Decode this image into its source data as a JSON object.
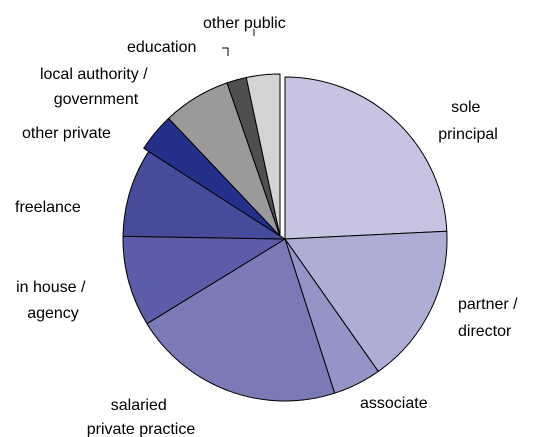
{
  "chart_data": {
    "type": "pie",
    "title": "",
    "start_angle": "12 o'clock, clockwise",
    "slices": [
      {
        "label": "sole principal",
        "value": 24.7,
        "color": "#c6c4e0",
        "lines": [
          "sole",
          "principal"
        ]
      },
      {
        "label": "partner / director",
        "value": 16.3,
        "color": "#aeaed4",
        "lines": [
          "partner /",
          "director"
        ]
      },
      {
        "label": "associate",
        "value": 4.9,
        "color": "#9494c6",
        "lines": [
          "associate"
        ]
      },
      {
        "label": "salaried private practice",
        "value": 21.6,
        "color": "#7a7ab6",
        "lines": [
          "salaried",
          "private practice"
        ]
      },
      {
        "label": "in house / agency",
        "value": 9.2,
        "color": "#5b5da8",
        "lines": [
          "in house /",
          "agency"
        ]
      },
      {
        "label": "freelance",
        "value": 9.0,
        "color": "#474b9c",
        "lines": [
          "freelance"
        ]
      },
      {
        "label": "other private",
        "value": 3.9,
        "color": "#25308a",
        "lines": [
          "other private"
        ],
        "exploded": true
      },
      {
        "label": "local authority / government",
        "value": 6.9,
        "color": "#9a9a9a",
        "lines": [
          "local authority /",
          "government"
        ],
        "exploded": true
      },
      {
        "label": "education",
        "value": 2.0,
        "color": "#4f4f4f",
        "lines": [
          "education"
        ],
        "exploded": true
      },
      {
        "label": "other public",
        "value": 3.4,
        "color": "#d3d3d3",
        "lines": [
          "other public"
        ],
        "exploded": true
      }
    ]
  }
}
